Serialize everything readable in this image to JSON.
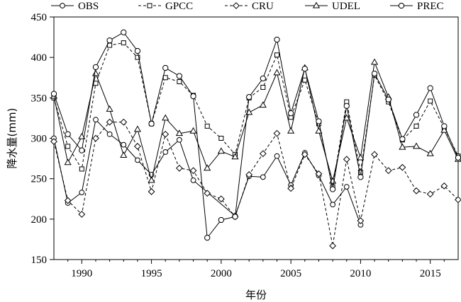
{
  "chart_data": {
    "type": "line",
    "title": "",
    "xlabel": "年份",
    "ylabel": "降水量(mm)",
    "xlim": [
      1988,
      2017
    ],
    "ylim": [
      150,
      450
    ],
    "xticks": [
      1990,
      1995,
      2000,
      2005,
      2010,
      2015
    ],
    "yticks": [
      150,
      200,
      250,
      300,
      350,
      400,
      450
    ],
    "grid": false,
    "legend_position": "top",
    "series": [
      {
        "name": "OBS",
        "marker": "circle",
        "dash": "solid",
        "points": [
          [
            1988,
            300
          ],
          [
            1989,
            220
          ],
          [
            1990,
            233
          ],
          [
            1991,
            323
          ],
          [
            1992,
            305
          ],
          [
            1993,
            292
          ],
          [
            1994,
            273
          ],
          [
            1995,
            255
          ],
          [
            1996,
            283
          ],
          [
            1997,
            298
          ],
          [
            1998,
            248
          ],
          [
            2001,
            204
          ],
          [
            2002,
            253
          ],
          [
            2003,
            252
          ],
          [
            2004,
            278
          ],
          [
            2005,
            242
          ],
          [
            2006,
            282
          ],
          [
            2007,
            254
          ],
          [
            2008,
            218
          ],
          [
            2009,
            240
          ],
          [
            2010,
            193
          ]
        ]
      },
      {
        "name": "GPCC",
        "marker": "square",
        "dash": "dashed",
        "points": [
          [
            1988,
            350
          ],
          [
            1989,
            290
          ],
          [
            1990,
            262
          ],
          [
            1991,
            368
          ],
          [
            1992,
            415
          ],
          [
            1993,
            418
          ],
          [
            1994,
            400
          ],
          [
            1995,
            318
          ],
          [
            1996,
            375
          ],
          [
            1997,
            370
          ],
          [
            1998,
            353
          ],
          [
            1999,
            315
          ],
          [
            2000,
            300
          ],
          [
            2001,
            280
          ],
          [
            2002,
            350
          ],
          [
            2003,
            363
          ],
          [
            2004,
            403
          ],
          [
            2005,
            326
          ],
          [
            2006,
            372
          ],
          [
            2007,
            318
          ],
          [
            2008,
            240
          ],
          [
            2009,
            345
          ],
          [
            2010,
            258
          ],
          [
            2011,
            378
          ],
          [
            2012,
            345
          ],
          [
            2013,
            298
          ],
          [
            2014,
            315
          ],
          [
            2015,
            346
          ],
          [
            2016,
            313
          ],
          [
            2017,
            278
          ]
        ]
      },
      {
        "name": "CRU",
        "marker": "diamond",
        "dash": "dashed",
        "points": [
          [
            1988,
            296
          ],
          [
            1989,
            223
          ],
          [
            1990,
            206
          ],
          [
            1991,
            300
          ],
          [
            1992,
            320
          ],
          [
            1993,
            320
          ],
          [
            1994,
            290
          ],
          [
            1995,
            234
          ],
          [
            1996,
            305
          ],
          [
            1997,
            263
          ],
          [
            1998,
            260
          ],
          [
            1999,
            232
          ],
          [
            2000,
            225
          ],
          [
            2001,
            203
          ],
          [
            2002,
            255
          ],
          [
            2003,
            281
          ],
          [
            2004,
            306
          ],
          [
            2005,
            238
          ],
          [
            2006,
            280
          ],
          [
            2007,
            256
          ],
          [
            2008,
            167
          ],
          [
            2009,
            274
          ],
          [
            2010,
            198
          ],
          [
            2011,
            280
          ],
          [
            2012,
            260
          ],
          [
            2013,
            264
          ],
          [
            2014,
            235
          ],
          [
            2015,
            231
          ],
          [
            2016,
            241
          ],
          [
            2017,
            224
          ]
        ]
      },
      {
        "name": "UDEL",
        "marker": "triangle",
        "dash": "solid",
        "points": [
          [
            1988,
            352
          ],
          [
            1989,
            270
          ],
          [
            1990,
            302
          ],
          [
            1991,
            380
          ],
          [
            1992,
            336
          ],
          [
            1993,
            279
          ],
          [
            1994,
            311
          ],
          [
            1995,
            248
          ],
          [
            1996,
            325
          ],
          [
            1997,
            306
          ],
          [
            1998,
            309
          ],
          [
            1999,
            263
          ],
          [
            2000,
            284
          ],
          [
            2001,
            277
          ],
          [
            2002,
            332
          ],
          [
            2003,
            341
          ],
          [
            2004,
            381
          ],
          [
            2005,
            309
          ],
          [
            2006,
            387
          ],
          [
            2007,
            309
          ],
          [
            2008,
            247
          ],
          [
            2009,
            325
          ],
          [
            2010,
            276
          ],
          [
            2011,
            394
          ],
          [
            2012,
            351
          ],
          [
            2013,
            289
          ],
          [
            2014,
            290
          ],
          [
            2015,
            281
          ],
          [
            2016,
            310
          ],
          [
            2017,
            274
          ]
        ]
      },
      {
        "name": "PREC",
        "marker": "octagon",
        "dash": "solid",
        "points": [
          [
            1988,
            355
          ],
          [
            1989,
            305
          ],
          [
            1990,
            285
          ],
          [
            1991,
            388
          ],
          [
            1992,
            421
          ],
          [
            1993,
            431
          ],
          [
            1994,
            408
          ],
          [
            1995,
            318
          ],
          [
            1996,
            387
          ],
          [
            1997,
            377
          ],
          [
            1998,
            352
          ],
          [
            1999,
            177
          ],
          [
            2000,
            199
          ],
          [
            2001,
            203
          ],
          [
            2002,
            351
          ],
          [
            2003,
            374
          ],
          [
            2004,
            422
          ],
          [
            2005,
            331
          ],
          [
            2006,
            386
          ],
          [
            2007,
            321
          ],
          [
            2008,
            237
          ],
          [
            2009,
            340
          ],
          [
            2010,
            252
          ],
          [
            2011,
            380
          ],
          [
            2012,
            348
          ],
          [
            2013,
            299
          ],
          [
            2014,
            329
          ],
          [
            2015,
            362
          ],
          [
            2016,
            315
          ],
          [
            2017,
            276
          ]
        ]
      }
    ]
  },
  "colors": {
    "line": "#000000",
    "background": "#ffffff"
  }
}
